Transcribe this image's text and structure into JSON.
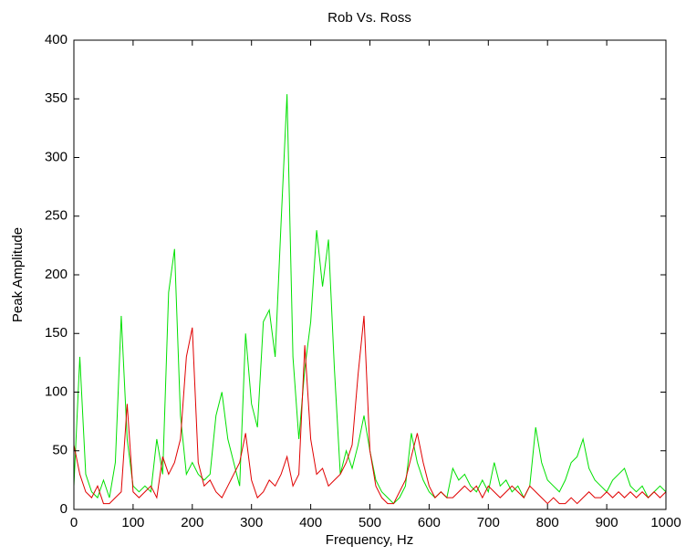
{
  "chart_data": {
    "type": "line",
    "title": "Rob Vs. Ross",
    "xlabel": "Frequency, Hz",
    "ylabel": "Peak Amplitude",
    "x": [
      0,
      10,
      20,
      30,
      40,
      50,
      60,
      70,
      80,
      90,
      100,
      110,
      120,
      130,
      140,
      150,
      160,
      170,
      180,
      190,
      200,
      210,
      220,
      230,
      240,
      250,
      260,
      270,
      280,
      290,
      300,
      310,
      320,
      330,
      340,
      350,
      360,
      370,
      380,
      390,
      400,
      410,
      420,
      430,
      440,
      450,
      460,
      470,
      480,
      490,
      500,
      510,
      520,
      530,
      540,
      550,
      560,
      570,
      580,
      590,
      600,
      610,
      620,
      630,
      640,
      650,
      660,
      670,
      680,
      690,
      700,
      710,
      720,
      730,
      740,
      750,
      760,
      770,
      780,
      790,
      800,
      810,
      820,
      830,
      840,
      850,
      860,
      870,
      880,
      890,
      900,
      910,
      920,
      930,
      940,
      950,
      960,
      970,
      980,
      990,
      1000
    ],
    "series": [
      {
        "color": "#00e000",
        "values": [
          20,
          130,
          30,
          15,
          10,
          25,
          10,
          40,
          165,
          60,
          20,
          15,
          20,
          15,
          60,
          30,
          185,
          222,
          80,
          30,
          40,
          30,
          25,
          30,
          80,
          100,
          60,
          40,
          20,
          150,
          90,
          70,
          160,
          170,
          130,
          245,
          354,
          130,
          60,
          120,
          160,
          238,
          190,
          230,
          120,
          30,
          50,
          35,
          55,
          80,
          50,
          25,
          15,
          10,
          5,
          10,
          20,
          65,
          40,
          25,
          15,
          10,
          15,
          10,
          35,
          25,
          30,
          20,
          15,
          25,
          15,
          40,
          20,
          25,
          15,
          20,
          10,
          20,
          70,
          40,
          25,
          20,
          15,
          25,
          40,
          45,
          60,
          35,
          25,
          20,
          15,
          25,
          30,
          35,
          20,
          15,
          20,
          10,
          15,
          20,
          15
        ]
      },
      {
        "color": "#e00000",
        "values": [
          55,
          30,
          15,
          10,
          20,
          5,
          5,
          10,
          15,
          90,
          15,
          10,
          15,
          20,
          10,
          45,
          30,
          40,
          60,
          130,
          155,
          40,
          20,
          25,
          15,
          10,
          20,
          30,
          40,
          65,
          25,
          10,
          15,
          25,
          20,
          30,
          45,
          20,
          30,
          140,
          60,
          30,
          35,
          20,
          25,
          30,
          40,
          55,
          115,
          165,
          50,
          20,
          10,
          5,
          5,
          15,
          25,
          45,
          65,
          40,
          20,
          10,
          15,
          10,
          10,
          15,
          20,
          15,
          20,
          10,
          20,
          15,
          10,
          15,
          20,
          15,
          10,
          20,
          15,
          10,
          5,
          10,
          5,
          5,
          10,
          5,
          10,
          15,
          10,
          10,
          15,
          10,
          15,
          10,
          15,
          10,
          15,
          10,
          15,
          10,
          15
        ]
      }
    ],
    "xlim": [
      0,
      1000
    ],
    "xticks": [
      0,
      100,
      200,
      300,
      400,
      500,
      600,
      700,
      800,
      900,
      1000
    ],
    "ylim": [
      0,
      400
    ],
    "yticks": [
      0,
      50,
      100,
      150,
      200,
      250,
      300,
      350,
      400
    ],
    "grid": false
  }
}
